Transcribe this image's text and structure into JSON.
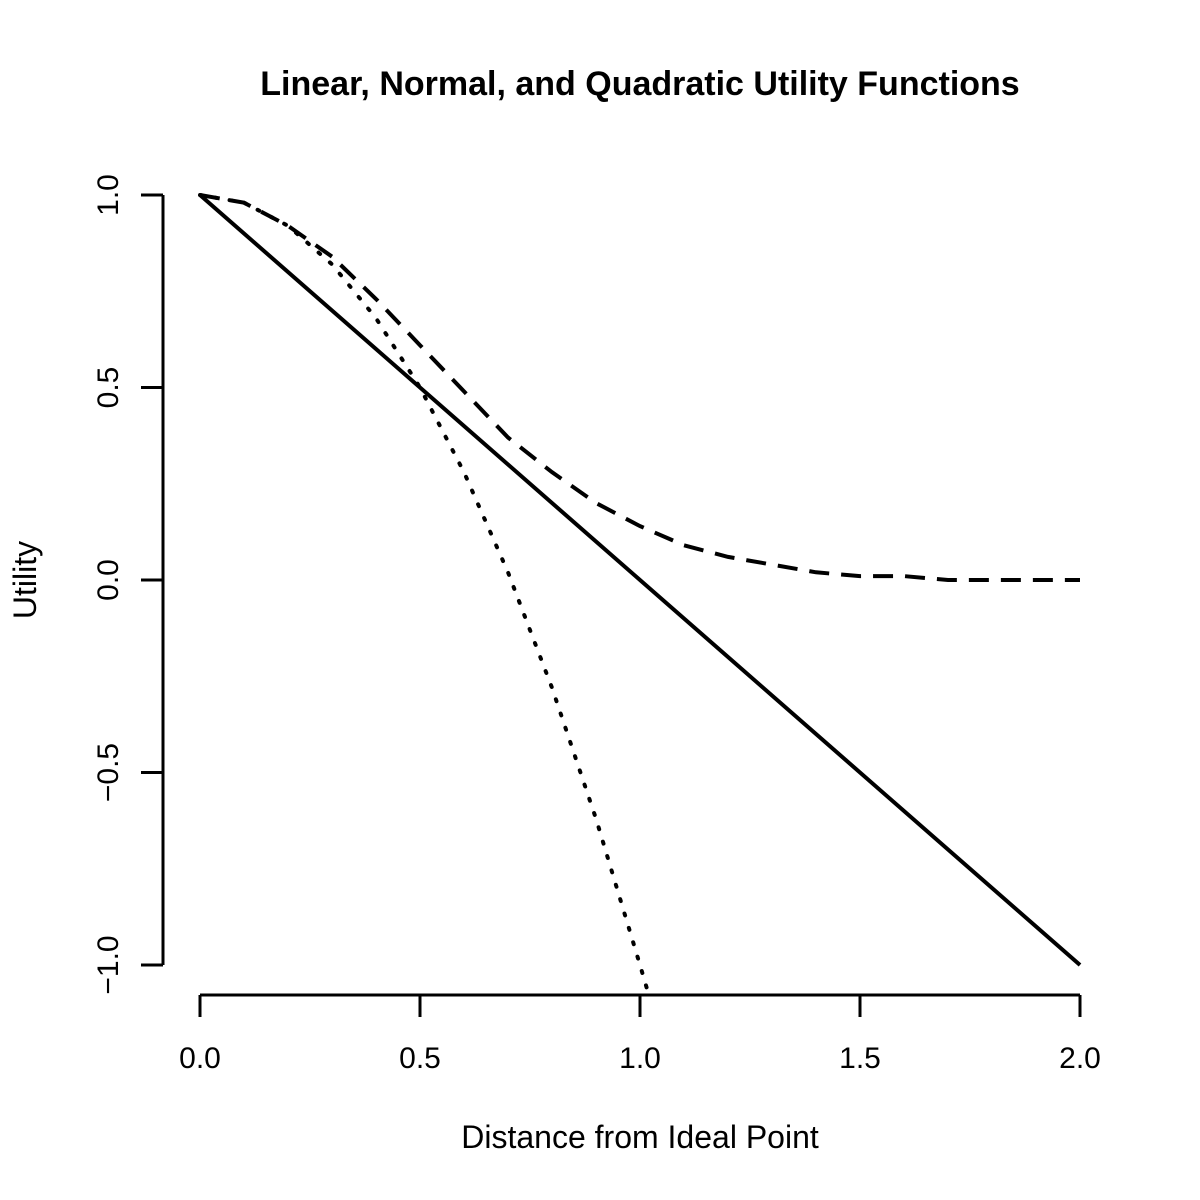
{
  "chart_data": {
    "type": "line",
    "title": "Linear, Normal, and Quadratic Utility Functions",
    "xlabel": "Distance from Ideal Point",
    "ylabel": "Utility",
    "xlim": [
      0,
      2
    ],
    "ylim": [
      -1,
      1
    ],
    "x_ticks": [
      "0.0",
      "0.5",
      "1.0",
      "1.5",
      "2.0"
    ],
    "y_ticks": [
      "-1.0",
      "-0.5",
      "0.0",
      "0.5",
      "1.0"
    ],
    "grid": false,
    "legend": "none",
    "x": [
      0,
      0.1,
      0.2,
      0.3,
      0.4,
      0.5,
      0.6,
      0.7,
      0.8,
      0.9,
      1.0,
      1.1,
      1.2,
      1.3,
      1.4,
      1.5,
      1.6,
      1.7,
      1.8,
      1.9,
      2.0
    ],
    "series": [
      {
        "style": "solid",
        "values": [
          1.0,
          0.9,
          0.8,
          0.7,
          0.6,
          0.5,
          0.4,
          0.3,
          0.2,
          0.1,
          0.0,
          -0.1,
          -0.2,
          -0.3,
          -0.4,
          -0.5,
          -0.6,
          -0.7,
          -0.8,
          -0.9,
          -1.0
        ]
      },
      {
        "style": "dashed",
        "values": [
          1.0,
          0.98,
          0.92,
          0.84,
          0.73,
          0.61,
          0.49,
          0.37,
          0.28,
          0.2,
          0.14,
          0.09,
          0.06,
          0.04,
          0.02,
          0.01,
          0.01,
          0.0,
          0.0,
          0.0,
          0.0
        ]
      },
      {
        "style": "dotted",
        "values": [
          1.0,
          0.98,
          0.92,
          0.82,
          0.68,
          0.5,
          0.28,
          0.02,
          -0.28,
          -0.62,
          -1.0,
          null,
          null,
          null,
          null,
          null,
          null,
          null,
          null,
          null,
          null
        ]
      }
    ],
    "colors": {
      "line": "#000000",
      "axis": "#000000"
    }
  }
}
